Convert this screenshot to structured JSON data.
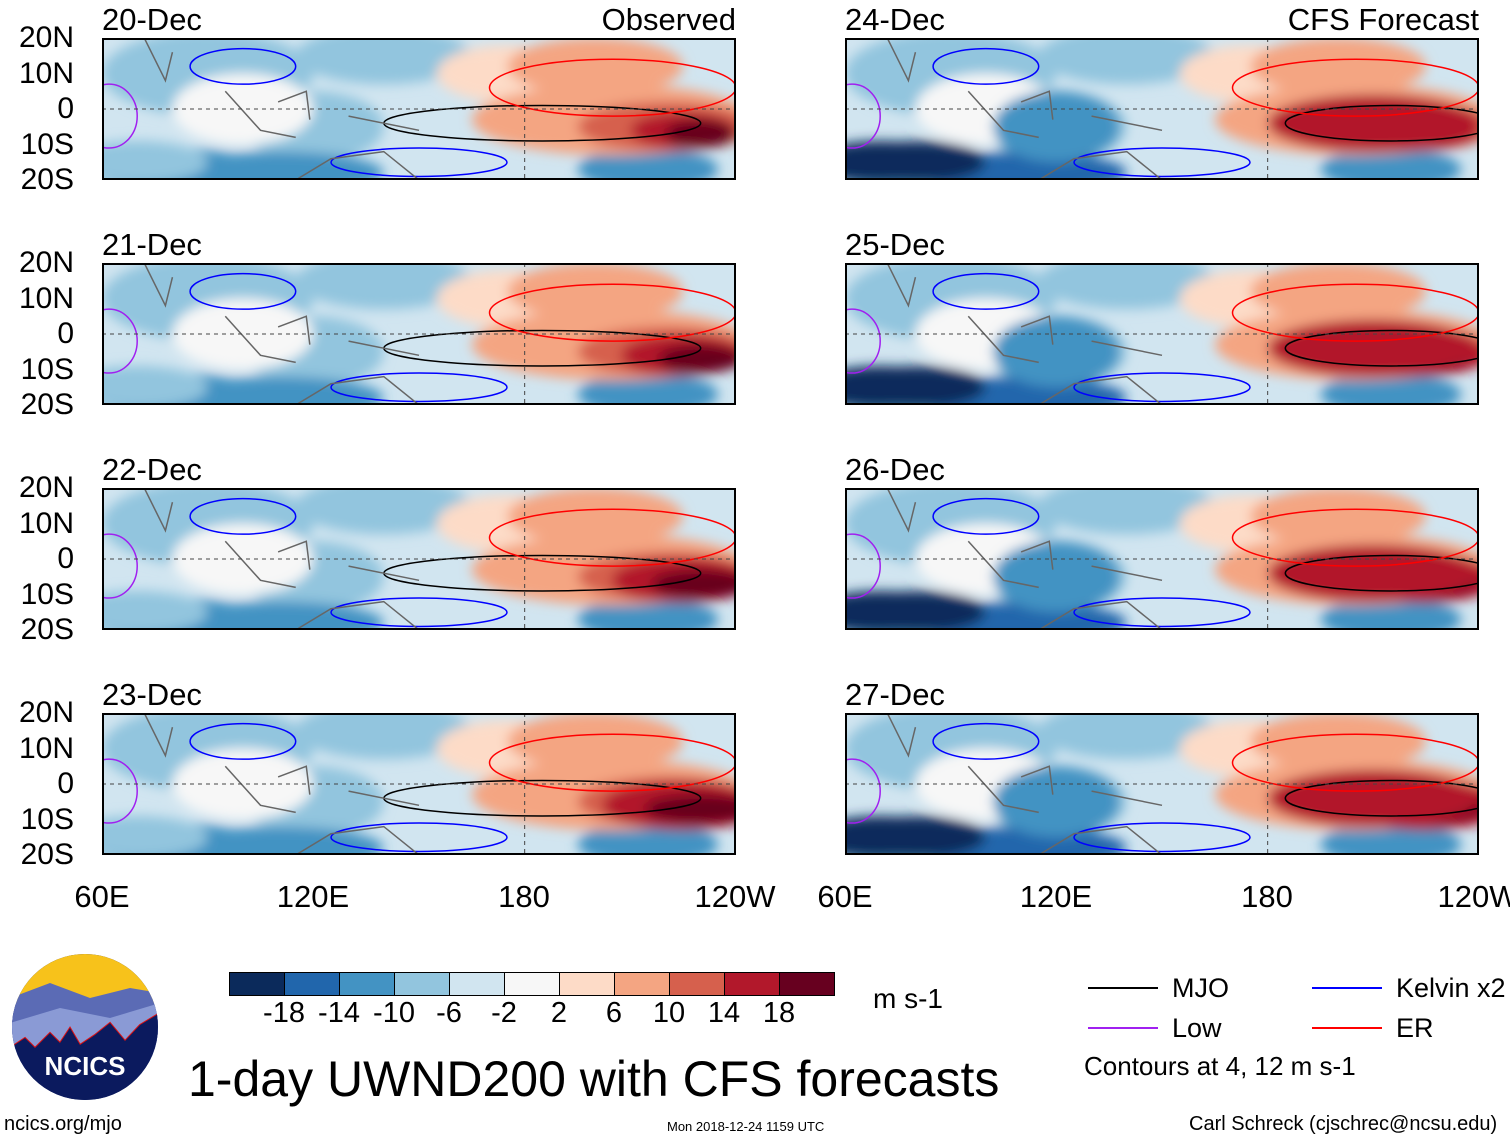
{
  "chart_data": {
    "type": "heatmap",
    "title": "1-day UWND200 with CFS forecasts",
    "units": "m s-1",
    "column_headers": [
      "Observed",
      "CFS Forecast"
    ],
    "panels": [
      {
        "date": "20-Dec",
        "column": "Observed"
      },
      {
        "date": "21-Dec",
        "column": "Observed"
      },
      {
        "date": "22-Dec",
        "column": "Observed"
      },
      {
        "date": "23-Dec",
        "column": "Observed"
      },
      {
        "date": "24-Dec",
        "column": "CFS Forecast"
      },
      {
        "date": "25-Dec",
        "column": "CFS Forecast"
      },
      {
        "date": "26-Dec",
        "column": "CFS Forecast"
      },
      {
        "date": "27-Dec",
        "column": "CFS Forecast"
      }
    ],
    "lat_ticks": [
      "20N",
      "10N",
      "0",
      "10S",
      "20S"
    ],
    "lon_ticks": [
      "60E",
      "120E",
      "180",
      "120W"
    ],
    "lat_range": [
      -20,
      20
    ],
    "lon_range": [
      60,
      240
    ],
    "colorbar": {
      "levels": [
        "-18",
        "-14",
        "-10",
        "-6",
        "-2",
        "2",
        "6",
        "10",
        "14",
        "18"
      ],
      "colors": [
        "#0b2a5b",
        "#2166ac",
        "#4393c3",
        "#92c5de",
        "#d1e5f0",
        "#f7f7f7",
        "#fddbc7",
        "#f4a582",
        "#d6604d",
        "#b2182b",
        "#67001f"
      ]
    },
    "legend": [
      {
        "label": "MJO",
        "color": "#000000"
      },
      {
        "label": "Kelvin x2",
        "color": "#0000ff"
      },
      {
        "label": "Low",
        "color": "#a020f0"
      },
      {
        "label": "ER",
        "color": "#ff0000"
      }
    ],
    "contour_note": "Contours at 4, 12 m s-1"
  },
  "footer": {
    "logo_text": "NCICS",
    "url": "ncics.org/mjo",
    "timestamp": "Mon 2018-12-24 1159 UTC",
    "credit": "Carl Schreck (cjschrec@ncsu.edu)"
  }
}
